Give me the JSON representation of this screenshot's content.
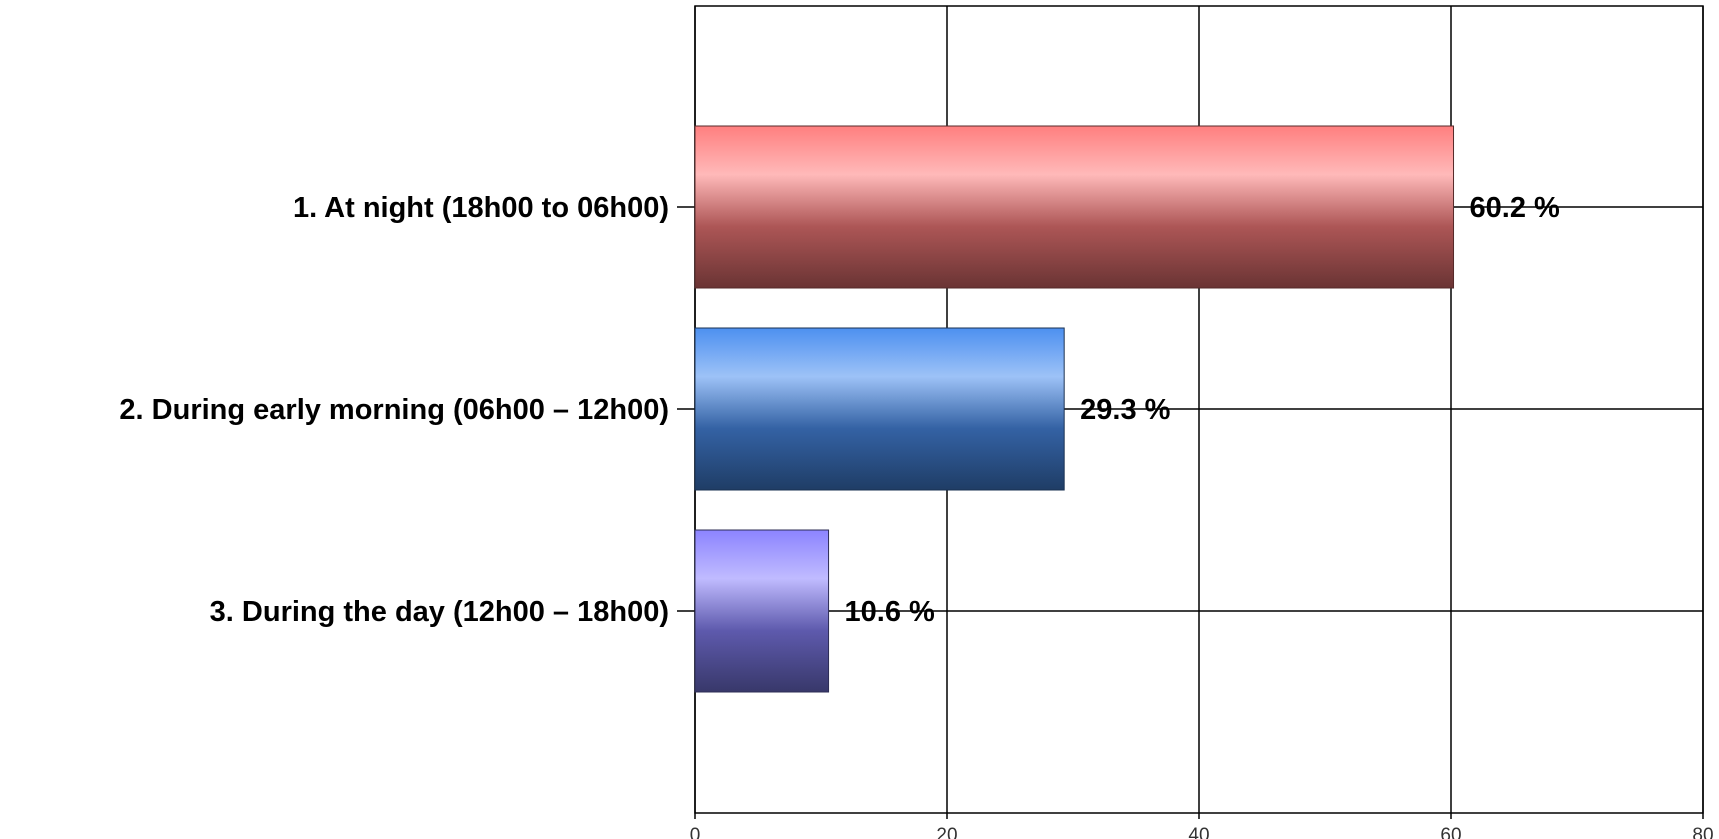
{
  "chart_data": {
    "type": "bar",
    "orientation": "horizontal",
    "categories": [
      "1. At night (18h00 to 06h00)",
      "2. During early morning (06h00 – 12h00)",
      "3. During the day (12h00 – 18h00)"
    ],
    "values": [
      60.2,
      29.3,
      10.6
    ],
    "value_labels": [
      "60.2 %",
      "29.3 %",
      "10.6 %"
    ],
    "bar_colors": [
      "#ff7f7f",
      "#4d90f0",
      "#8c84ff"
    ],
    "bar_dark_colors": [
      "#6a3434",
      "#1f3d66",
      "#38386a"
    ],
    "xlim": [
      0,
      80
    ],
    "x_ticks": [
      0,
      20,
      40,
      60,
      80
    ],
    "x_tick_labels": [
      "0",
      "20",
      "40",
      "60",
      "80"
    ],
    "grid": true,
    "legend": false,
    "title": "",
    "xlabel": "",
    "ylabel": ""
  }
}
